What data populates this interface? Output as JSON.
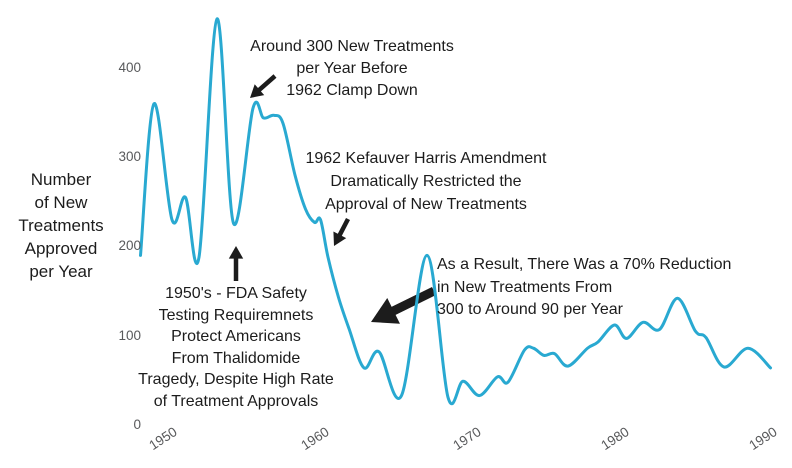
{
  "colors": {
    "line": "#29A9D1",
    "text": "#1c1c1c",
    "tick": "#58595b",
    "background": "#ffffff"
  },
  "ylabel": {
    "lines": [
      "Number",
      "of New",
      "Treatments",
      "Approved",
      "per Year"
    ]
  },
  "yticks": [
    "400",
    "300",
    "200",
    "100",
    "0"
  ],
  "xticks": [
    "1950",
    "1960",
    "1970",
    "1980",
    "1990"
  ],
  "annotations": {
    "clamp": {
      "lines": [
        "Around 300 New Treatments",
        "per Year Before",
        "1962 Clamp Down"
      ]
    },
    "kefauver": {
      "lines": [
        "1962 Kefauver Harris Amendment",
        "Dramatically Restricted the",
        "Approval of New Treatments"
      ]
    },
    "result": {
      "lines": [
        "As a Result, There Was a 70% Reduction",
        "in New Treatments From",
        "300 to Around 90 per Year"
      ]
    },
    "fifties": {
      "lines": [
        "1950's - FDA Safety",
        "Testing Requiremnets",
        "Protect Americans",
        "From Thalidomide",
        "Tragedy, Despite High Rate",
        "of Treatment Approvals"
      ]
    }
  },
  "chart_data": {
    "type": "line",
    "title": "",
    "xlabel": "",
    "ylabel": "Number of New Treatments Approved per Year",
    "series_name": "new-treatments-approved-per-year",
    "x": [
      1948.5,
      1949.4,
      1950.6,
      1951.5,
      1952.4,
      1953.6,
      1954.7,
      1956.0,
      1956.7,
      1957.4,
      1958.0,
      1958.8,
      1959.5,
      1960.1,
      1960.5,
      1961.0,
      1961.7,
      1962.4,
      1963.4,
      1964.4,
      1965.9,
      1967.6,
      1969.0,
      1970.0,
      1971.1,
      1972.3,
      1973.0,
      1974.1,
      1974.7,
      1975.4,
      1976.1,
      1977.0,
      1978.3,
      1979.0,
      1980.1,
      1980.9,
      1982.0,
      1983.1,
      1984.3,
      1985.5,
      1986.2,
      1987.4,
      1989.0,
      1990.5
    ],
    "values": [
      190,
      360,
      230,
      255,
      188,
      455,
      226,
      355,
      344,
      347,
      338,
      280,
      242,
      227,
      230,
      188,
      143,
      108,
      64,
      82,
      33,
      190,
      31,
      49,
      33,
      54,
      48,
      84,
      86,
      78,
      80,
      66,
      86,
      93,
      112,
      97,
      115,
      107,
      142,
      105,
      98,
      65,
      86,
      64
    ],
    "xticks": [
      1950,
      1960,
      1970,
      1980,
      1990
    ],
    "yticks": [
      0,
      100,
      200,
      300,
      400
    ],
    "xlim": [
      1948,
      1991
    ],
    "ylim": [
      0,
      460
    ],
    "grid": false,
    "legend": false,
    "line_color": "#29A9D1",
    "annotation_notes": [
      "Around 300 New Treatments per Year Before 1962 Clamp Down",
      "1962 Kefauver Harris Amendment Dramatically Restricted the Approval of New Treatments",
      "As a Result, There Was a 70% Reduction in New Treatments From 300 to Around 90 per Year",
      "1950's - FDA Safety Testing Requiremnets Protect Americans From Thalidomide Tragedy, Despite High Rate of Treatment Approvals"
    ]
  }
}
